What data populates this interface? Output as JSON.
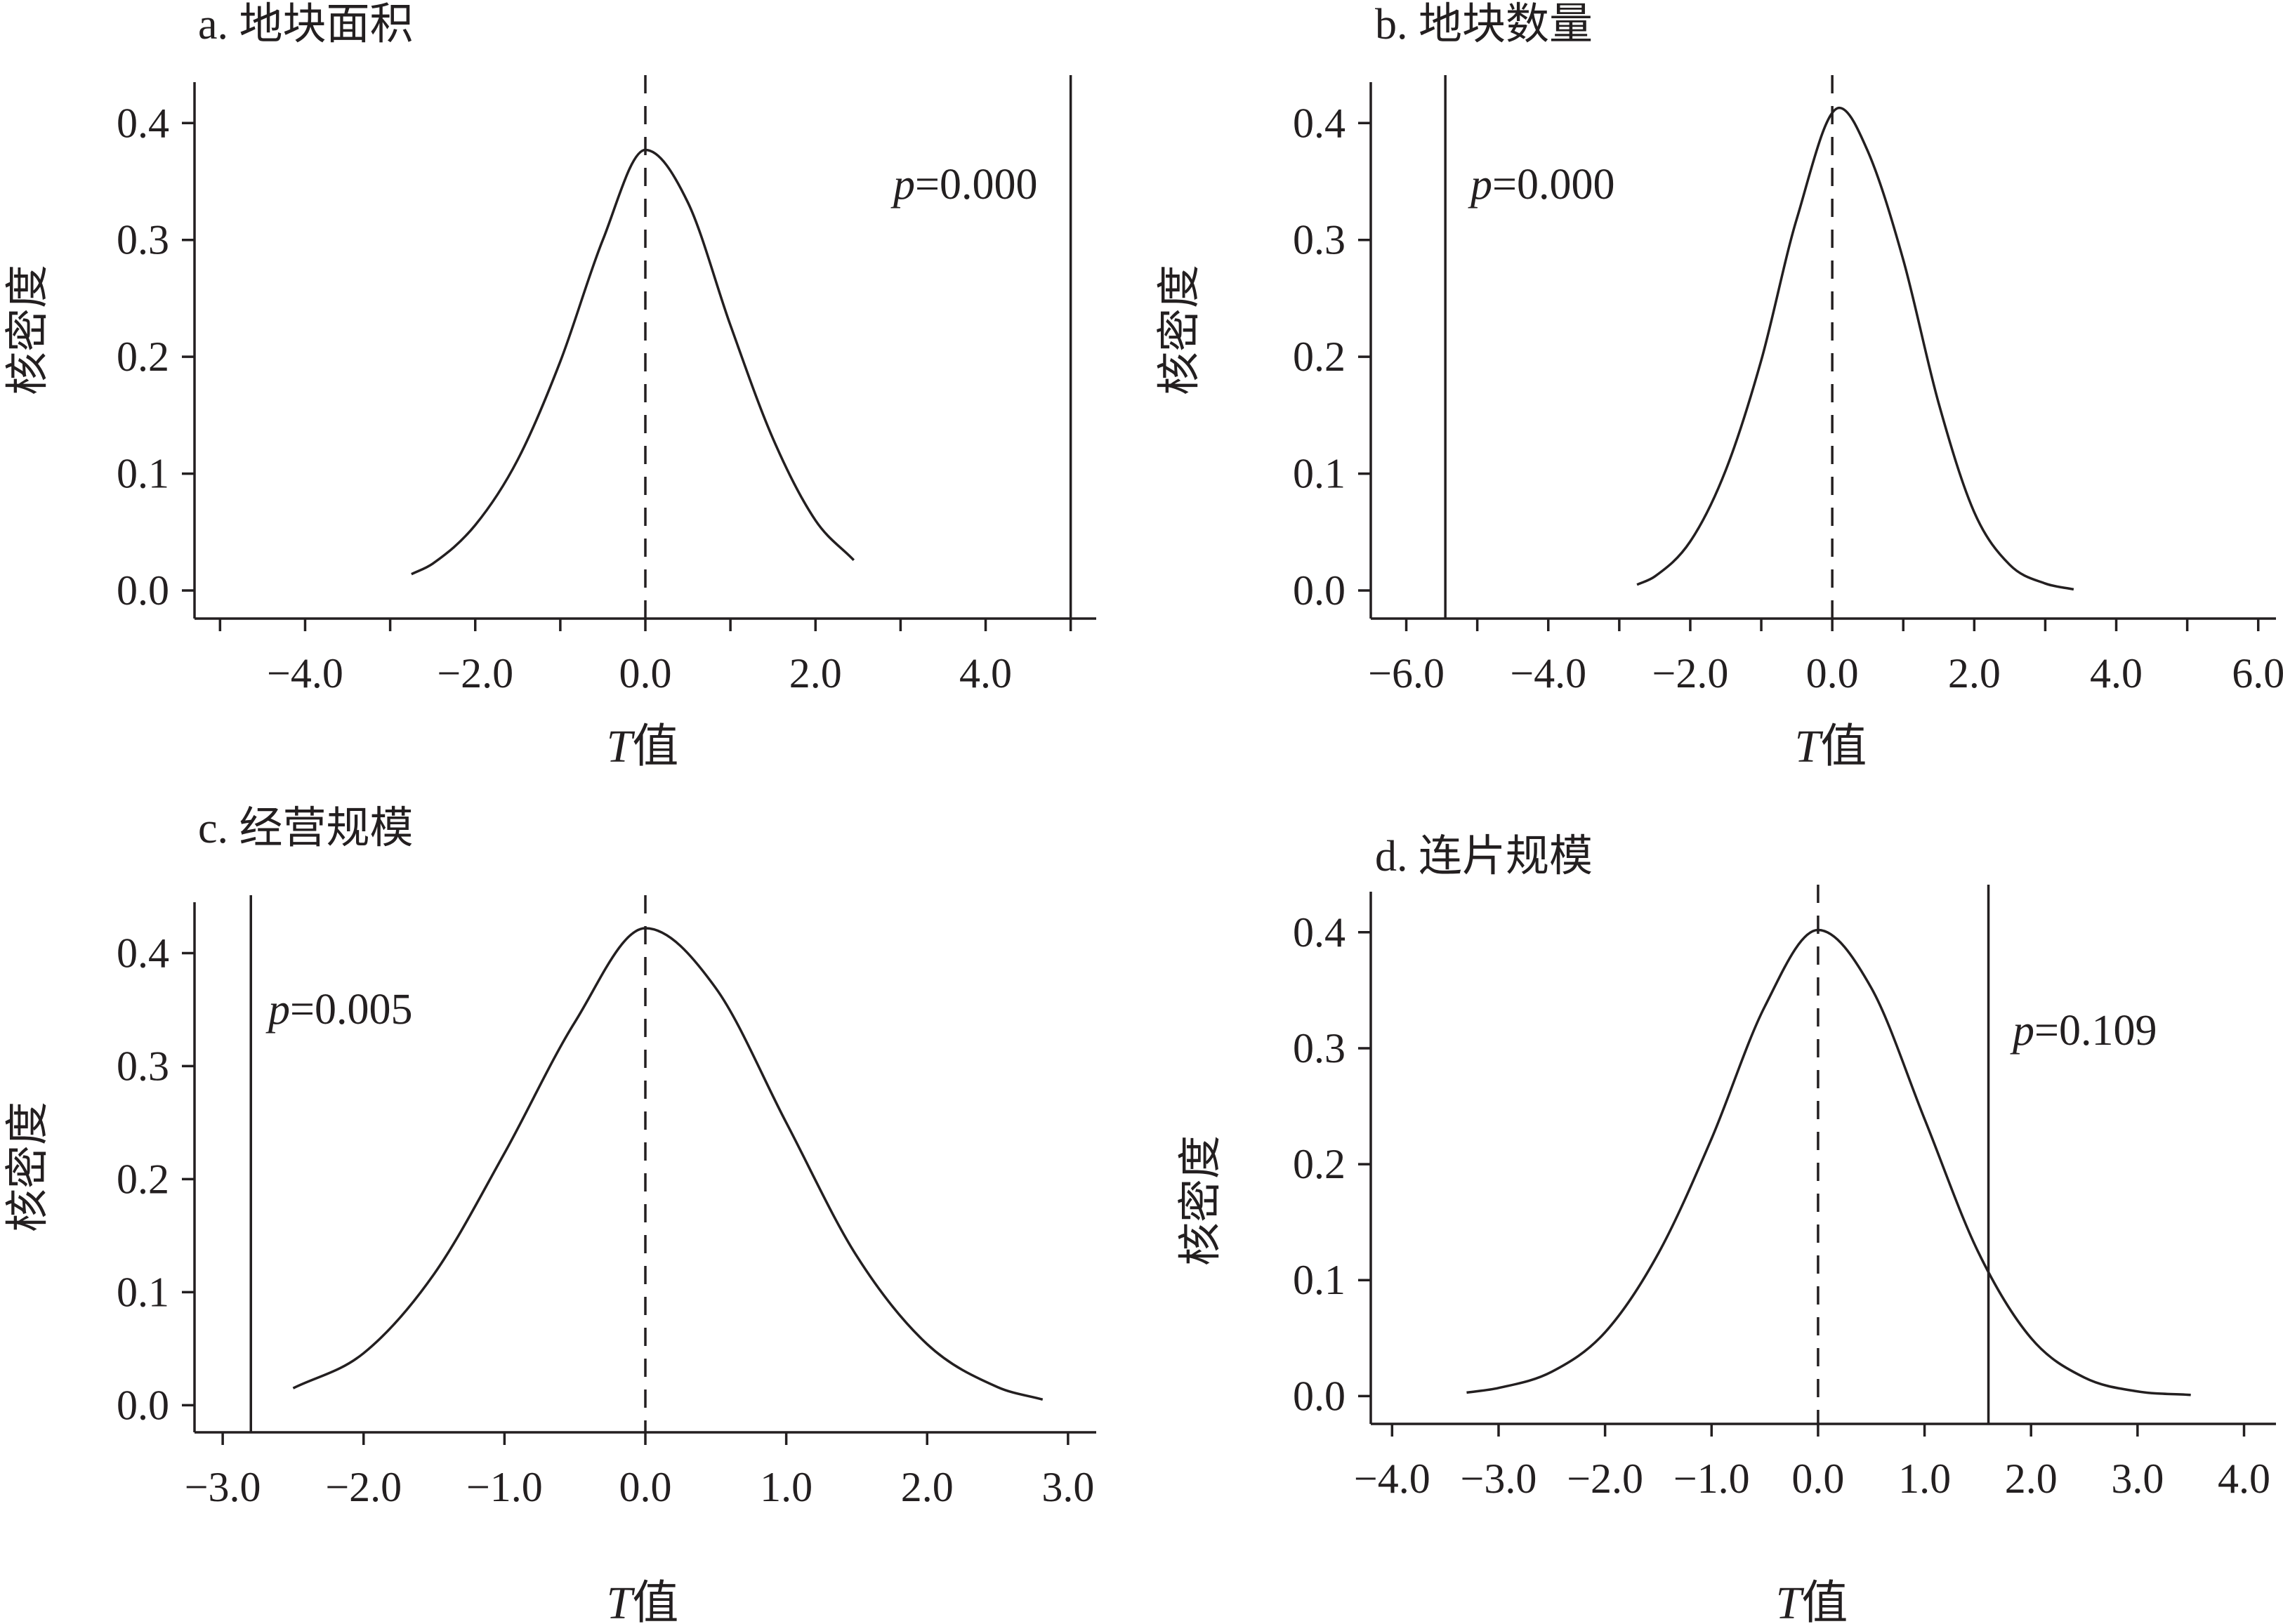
{
  "chart_data": [
    {
      "type": "line",
      "title": "a. 地块面积",
      "xlabel_italic": "T",
      "xlabel": "值",
      "ylabel": "核密度",
      "x_ticks": [
        -5,
        -4,
        -3,
        -2,
        -1,
        0,
        1,
        2,
        3,
        4,
        5
      ],
      "x_tick_labels": [
        "",
        "−4.0",
        "",
        "−2.0",
        "",
        "0.0",
        "",
        "2.0",
        "",
        "4.0",
        ""
      ],
      "y_ticks": [
        0,
        0.1,
        0.2,
        0.3,
        0.4
      ],
      "y_tick_labels": [
        "0.0",
        "0.1",
        "0.2",
        "0.3",
        "0.4"
      ],
      "xlim": [
        -5.3,
        5.3
      ],
      "ylim": [
        -0.024,
        0.435
      ],
      "series": [
        {
          "x": [
            -2.75,
            -2.5,
            -2.0,
            -1.5,
            -1.0,
            -0.5,
            0.0,
            0.5,
            1.0,
            1.5,
            2.0,
            2.45
          ],
          "y": [
            0.014,
            0.023,
            0.056,
            0.112,
            0.196,
            0.3,
            0.377,
            0.332,
            0.227,
            0.13,
            0.06,
            0.026
          ]
        }
      ],
      "mean_line_x": 0.0,
      "observed_line_x": 5.0,
      "p_label": "p",
      "p_value": "=0.000"
    },
    {
      "type": "line",
      "title": "b. 地块数量",
      "xlabel_italic": "T",
      "xlabel": "值",
      "ylabel": "核密度",
      "x_ticks": [
        -6,
        -5,
        -4,
        -3,
        -2,
        -1,
        0,
        1,
        2,
        3,
        4,
        5,
        6
      ],
      "x_tick_labels": [
        "−6.0",
        "",
        "−4.0",
        "",
        "−2.0",
        "",
        "0.0",
        "",
        "2.0",
        "",
        "4.0",
        "",
        "6.0"
      ],
      "y_ticks": [
        0,
        0.1,
        0.2,
        0.3,
        0.4
      ],
      "y_tick_labels": [
        "0.0",
        "0.1",
        "0.2",
        "0.3",
        "0.4"
      ],
      "xlim": [
        -6.5,
        6.25
      ],
      "ylim": [
        -0.024,
        0.435
      ],
      "series": [
        {
          "x": [
            -2.75,
            -2.5,
            -2.0,
            -1.5,
            -1.0,
            -0.5,
            0.1,
            0.5,
            1.0,
            1.5,
            2.0,
            2.5,
            3.0,
            3.4
          ],
          "y": [
            0.005,
            0.012,
            0.042,
            0.103,
            0.197,
            0.318,
            0.413,
            0.376,
            0.283,
            0.16,
            0.067,
            0.022,
            0.006,
            0.001
          ]
        }
      ],
      "mean_line_x": 0.0,
      "observed_line_x": -5.45,
      "p_label": "p",
      "p_value": "=0.000"
    },
    {
      "type": "line",
      "title": "c. 经营规模",
      "xlabel_italic": "T",
      "xlabel": "值",
      "ylabel": "核密度",
      "x_ticks": [
        -3,
        -2,
        -1,
        0,
        1,
        2,
        3
      ],
      "x_tick_labels": [
        "−3.0",
        "−2.0",
        "−1.0",
        "0.0",
        "1.0",
        "2.0",
        "3.0"
      ],
      "y_ticks": [
        0,
        0.1,
        0.2,
        0.3,
        0.4
      ],
      "y_tick_labels": [
        "0.0",
        "0.1",
        "0.2",
        "0.3",
        "0.4"
      ],
      "xlim": [
        -3.2,
        3.2
      ],
      "ylim": [
        -0.024,
        0.445
      ],
      "series": [
        {
          "x": [
            -2.5,
            -2.0,
            -1.5,
            -1.0,
            -0.5,
            0.0,
            0.5,
            1.0,
            1.5,
            2.0,
            2.5,
            2.82
          ],
          "y": [
            0.015,
            0.046,
            0.116,
            0.223,
            0.339,
            0.422,
            0.369,
            0.25,
            0.132,
            0.054,
            0.016,
            0.005
          ]
        }
      ],
      "mean_line_x": 0.0,
      "observed_line_x": -2.8,
      "p_label": "p",
      "p_value": "=0.005"
    },
    {
      "type": "line",
      "title": "d. 连片规模",
      "xlabel_italic": "T",
      "xlabel": "值",
      "ylabel": "核密度",
      "x_ticks": [
        -4,
        -3,
        -2,
        -1,
        0,
        1,
        2,
        3,
        4
      ],
      "x_tick_labels": [
        "−4.0",
        "−3.0",
        "−2.0",
        "−1.0",
        "0.0",
        "1.0",
        "2.0",
        "3.0",
        "4.0"
      ],
      "y_ticks": [
        0,
        0.1,
        0.2,
        0.3,
        0.4
      ],
      "y_tick_labels": [
        "0.0",
        "0.1",
        "0.2",
        "0.3",
        "0.4"
      ],
      "xlim": [
        -4.2,
        4.3
      ],
      "ylim": [
        -0.024,
        0.435
      ],
      "series": [
        {
          "x": [
            -3.3,
            -3.0,
            -2.5,
            -2.0,
            -1.5,
            -1.0,
            -0.5,
            0.0,
            0.5,
            1.0,
            1.5,
            2.0,
            2.5,
            3.0,
            3.5
          ],
          "y": [
            0.003,
            0.007,
            0.021,
            0.055,
            0.123,
            0.222,
            0.336,
            0.402,
            0.352,
            0.239,
            0.125,
            0.05,
            0.016,
            0.004,
            0.001
          ]
        }
      ],
      "mean_line_x": 0.0,
      "observed_line_x": 1.6,
      "p_label": "p",
      "p_value": "=0.109"
    }
  ]
}
